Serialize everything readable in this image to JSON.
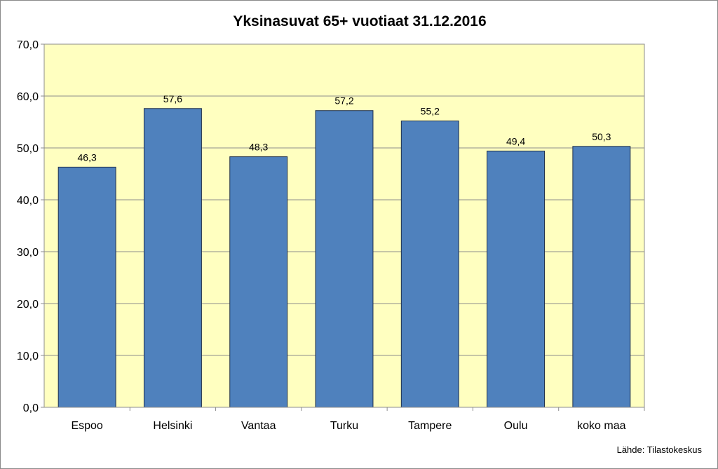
{
  "chart_data": {
    "type": "bar",
    "title": "Yksinasuvat  65+ vuotiaat    31.12.2016",
    "categories": [
      "Espoo",
      "Helsinki",
      "Vantaa",
      "Turku",
      "Tampere",
      "Oulu",
      "koko maa"
    ],
    "values": [
      46.3,
      57.6,
      48.3,
      57.2,
      55.2,
      49.4,
      50.3
    ],
    "data_labels": [
      "46,3",
      "57,6",
      "48,3",
      "57,2",
      "55,2",
      "49,4",
      "50,3"
    ],
    "yticks": [
      "0,0",
      "10,0",
      "20,0",
      "30,0",
      "40,0",
      "50,0",
      "60,0",
      "70,0"
    ],
    "ylim": [
      0,
      70
    ],
    "ytick_step": 10,
    "grid": true,
    "legend": "none",
    "source_note": "Lähde: Tilastokeskus",
    "colors": {
      "bar_fill": "#4f81bd",
      "bar_stroke": "#1f2f4a",
      "plot_bg": "#ffffc0",
      "grid": "#8c8c8c",
      "axis": "#8c8c8c"
    }
  }
}
